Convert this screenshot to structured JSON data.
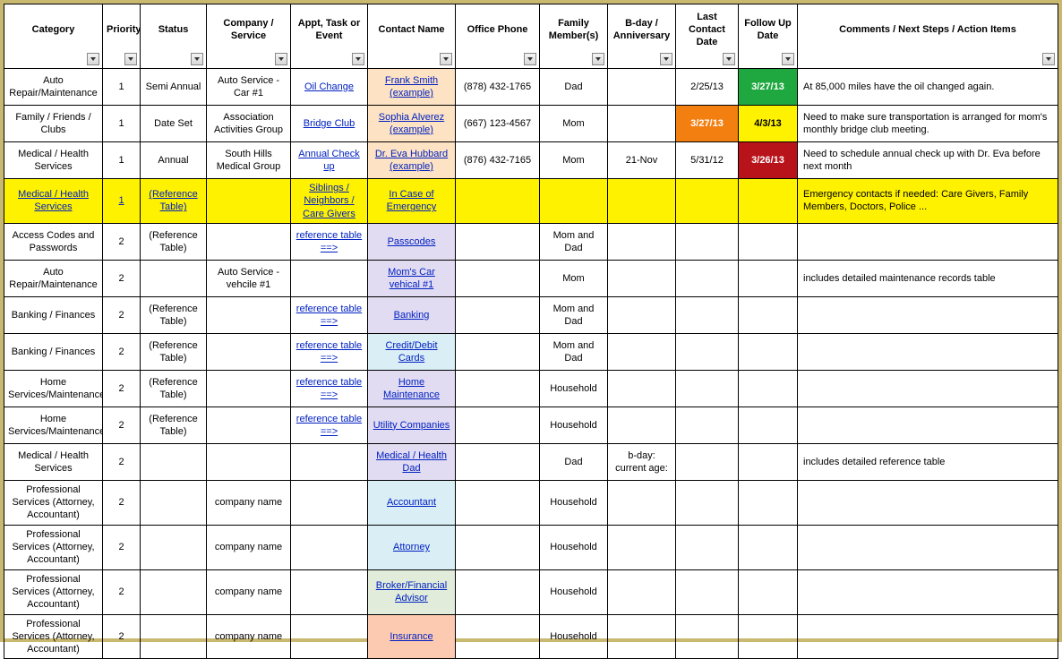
{
  "headers": [
    "Category",
    "Priority",
    "Status",
    "Company / Service",
    "Appt, Task or Event",
    "Contact Name",
    "Office Phone",
    "Family Member(s)",
    "B-day / Anniversary",
    "Last Contact Date",
    "Follow Up Date",
    "Comments / Next Steps / Action Items"
  ],
  "col_classes": [
    "col-category",
    "col-priority",
    "col-status",
    "col-company",
    "col-appt",
    "col-contact",
    "col-office",
    "col-family",
    "col-bday",
    "col-lastcontact",
    "col-followup",
    "col-comments"
  ],
  "colors": {
    "green": "#1fa83f",
    "orange": "#f47f11",
    "yellow": "#fff200",
    "red": "#b8131a",
    "hl_yellow": "#fff200",
    "peach": "#fde3c3",
    "lavender": "#e2dcf2",
    "lightblue": "#daeef6",
    "mint": "#e1edda",
    "salmon": "#fccab1"
  },
  "rows": [
    {
      "cells": [
        {
          "t": "Auto Repair/Maintenance"
        },
        {
          "t": "1"
        },
        {
          "t": "Semi Annual"
        },
        {
          "t": "Auto Service - Car #1"
        },
        {
          "t": "Oil Change",
          "link": true
        },
        {
          "t": "Frank Smith (example)",
          "link": true,
          "bg": "peach"
        },
        {
          "t": "(878) 432-1765"
        },
        {
          "t": "Dad"
        },
        {
          "t": ""
        },
        {
          "t": "2/25/13"
        },
        {
          "t": "3/27/13",
          "bg": "green",
          "fg": "#fff",
          "bold": true
        },
        {
          "t": "At 85,000 miles have the oil changed again.",
          "align": "left"
        }
      ]
    },
    {
      "cells": [
        {
          "t": "Family / Friends / Clubs"
        },
        {
          "t": "1"
        },
        {
          "t": "Date Set"
        },
        {
          "t": "Association Activities Group"
        },
        {
          "t": "Bridge Club",
          "link": true
        },
        {
          "t": "Sophia Alverez (example)",
          "link": true,
          "bg": "peach"
        },
        {
          "t": "(667) 123-4567"
        },
        {
          "t": "Mom"
        },
        {
          "t": ""
        },
        {
          "t": "3/27/13",
          "bg": "orange",
          "fg": "#fff",
          "bold": true
        },
        {
          "t": "4/3/13",
          "bg": "yellow",
          "bold": true
        },
        {
          "t": "Need to make sure transportation is arranged for mom's monthly bridge club meeting.",
          "align": "left"
        }
      ]
    },
    {
      "cells": [
        {
          "t": "Medical / Health Services"
        },
        {
          "t": "1"
        },
        {
          "t": "Annual"
        },
        {
          "t": "South Hills Medical Group"
        },
        {
          "t": "Annual Check up",
          "link": true
        },
        {
          "t": "Dr. Eva Hubbard (example)",
          "link": true,
          "bg": "peach"
        },
        {
          "t": "(876) 432-7165"
        },
        {
          "t": "Mom"
        },
        {
          "t": "21-Nov"
        },
        {
          "t": "5/31/12"
        },
        {
          "t": "3/26/13",
          "bg": "red",
          "fg": "#fff",
          "bold": true
        },
        {
          "t": "Need to schedule annual check up with Dr. Eva before next month",
          "align": "left"
        }
      ]
    },
    {
      "rowbg": "hl_yellow",
      "cells": [
        {
          "t": "Medical / Health Services",
          "link": true
        },
        {
          "t": "1",
          "link": true
        },
        {
          "t": "(Reference Table)",
          "link": true
        },
        {
          "t": ""
        },
        {
          "t": "Siblings / Neighbors / Care Givers",
          "link": true
        },
        {
          "t": "In Case of Emergency",
          "link": true
        },
        {
          "t": ""
        },
        {
          "t": ""
        },
        {
          "t": ""
        },
        {
          "t": ""
        },
        {
          "t": ""
        },
        {
          "t": "Emergency contacts if needed: Care Givers, Family Members, Doctors, Police ...",
          "align": "left"
        }
      ]
    },
    {
      "cells": [
        {
          "t": "Access Codes and Passwords"
        },
        {
          "t": "2"
        },
        {
          "t": "(Reference Table)"
        },
        {
          "t": ""
        },
        {
          "t": "reference table ==>",
          "link": true
        },
        {
          "t": "Passcodes",
          "link": true,
          "bg": "lavender"
        },
        {
          "t": ""
        },
        {
          "t": "Mom and Dad"
        },
        {
          "t": ""
        },
        {
          "t": ""
        },
        {
          "t": ""
        },
        {
          "t": ""
        }
      ]
    },
    {
      "cells": [
        {
          "t": "Auto Repair/Maintenance"
        },
        {
          "t": "2"
        },
        {
          "t": ""
        },
        {
          "t": "Auto Service - vehcile #1"
        },
        {
          "t": ""
        },
        {
          "t": "Mom's Car vehical #1",
          "link": true,
          "bg": "lavender"
        },
        {
          "t": ""
        },
        {
          "t": "Mom"
        },
        {
          "t": ""
        },
        {
          "t": ""
        },
        {
          "t": ""
        },
        {
          "t": "includes detailed maintenance records table",
          "align": "left"
        }
      ]
    },
    {
      "cells": [
        {
          "t": "Banking / Finances"
        },
        {
          "t": "2"
        },
        {
          "t": "(Reference Table)"
        },
        {
          "t": ""
        },
        {
          "t": "reference table ==>",
          "link": true
        },
        {
          "t": "Banking",
          "link": true,
          "bg": "lavender"
        },
        {
          "t": ""
        },
        {
          "t": "Mom and Dad"
        },
        {
          "t": ""
        },
        {
          "t": ""
        },
        {
          "t": ""
        },
        {
          "t": ""
        }
      ]
    },
    {
      "cells": [
        {
          "t": "Banking / Finances"
        },
        {
          "t": "2"
        },
        {
          "t": "(Reference Table)"
        },
        {
          "t": ""
        },
        {
          "t": "reference table ==>",
          "link": true
        },
        {
          "t": "Credit/Debit Cards",
          "link": true,
          "bg": "lightblue"
        },
        {
          "t": ""
        },
        {
          "t": "Mom and Dad"
        },
        {
          "t": ""
        },
        {
          "t": ""
        },
        {
          "t": ""
        },
        {
          "t": ""
        }
      ]
    },
    {
      "cells": [
        {
          "t": "Home Services/Maintenance/Utilities"
        },
        {
          "t": "2"
        },
        {
          "t": "(Reference Table)"
        },
        {
          "t": ""
        },
        {
          "t": "reference table ==>",
          "link": true
        },
        {
          "t": "Home Maintenance",
          "link": true,
          "bg": "lavender"
        },
        {
          "t": ""
        },
        {
          "t": "Household"
        },
        {
          "t": ""
        },
        {
          "t": ""
        },
        {
          "t": ""
        },
        {
          "t": ""
        }
      ]
    },
    {
      "cells": [
        {
          "t": "Home Services/Maintenance/Utilities"
        },
        {
          "t": "2"
        },
        {
          "t": "(Reference Table)"
        },
        {
          "t": ""
        },
        {
          "t": "reference table ==>",
          "link": true
        },
        {
          "t": "Utility Companies",
          "link": true,
          "bg": "lavender"
        },
        {
          "t": ""
        },
        {
          "t": "Household"
        },
        {
          "t": ""
        },
        {
          "t": ""
        },
        {
          "t": ""
        },
        {
          "t": ""
        }
      ]
    },
    {
      "cells": [
        {
          "t": "Medical / Health Services"
        },
        {
          "t": "2"
        },
        {
          "t": ""
        },
        {
          "t": ""
        },
        {
          "t": ""
        },
        {
          "t": "Medical / Health Dad",
          "link": true,
          "bg": "lavender"
        },
        {
          "t": ""
        },
        {
          "t": "Dad"
        },
        {
          "t": "b-day: current age:"
        },
        {
          "t": ""
        },
        {
          "t": ""
        },
        {
          "t": "includes detailed reference table",
          "align": "left"
        }
      ]
    },
    {
      "cells": [
        {
          "t": "Professional Services (Attorney, Accountant)"
        },
        {
          "t": "2"
        },
        {
          "t": ""
        },
        {
          "t": "company name"
        },
        {
          "t": ""
        },
        {
          "t": "Accountant",
          "link": true,
          "bg": "lightblue"
        },
        {
          "t": ""
        },
        {
          "t": "Household"
        },
        {
          "t": ""
        },
        {
          "t": ""
        },
        {
          "t": ""
        },
        {
          "t": ""
        }
      ]
    },
    {
      "cells": [
        {
          "t": "Professional Services (Attorney, Accountant)"
        },
        {
          "t": "2"
        },
        {
          "t": ""
        },
        {
          "t": "company name"
        },
        {
          "t": ""
        },
        {
          "t": "Attorney",
          "link": true,
          "bg": "lightblue"
        },
        {
          "t": ""
        },
        {
          "t": "Household"
        },
        {
          "t": ""
        },
        {
          "t": ""
        },
        {
          "t": ""
        },
        {
          "t": ""
        }
      ]
    },
    {
      "cells": [
        {
          "t": "Professional Services (Attorney, Accountant)"
        },
        {
          "t": "2"
        },
        {
          "t": ""
        },
        {
          "t": "company name"
        },
        {
          "t": ""
        },
        {
          "t": "Broker/Financial Advisor",
          "link": true,
          "bg": "mint"
        },
        {
          "t": ""
        },
        {
          "t": "Household"
        },
        {
          "t": ""
        },
        {
          "t": ""
        },
        {
          "t": ""
        },
        {
          "t": ""
        }
      ]
    },
    {
      "cells": [
        {
          "t": "Professional Services (Attorney, Accountant)"
        },
        {
          "t": "2"
        },
        {
          "t": ""
        },
        {
          "t": "company name"
        },
        {
          "t": ""
        },
        {
          "t": "Insurance",
          "link": true,
          "bg": "salmon"
        },
        {
          "t": ""
        },
        {
          "t": "Household"
        },
        {
          "t": ""
        },
        {
          "t": ""
        },
        {
          "t": ""
        },
        {
          "t": ""
        }
      ]
    }
  ]
}
